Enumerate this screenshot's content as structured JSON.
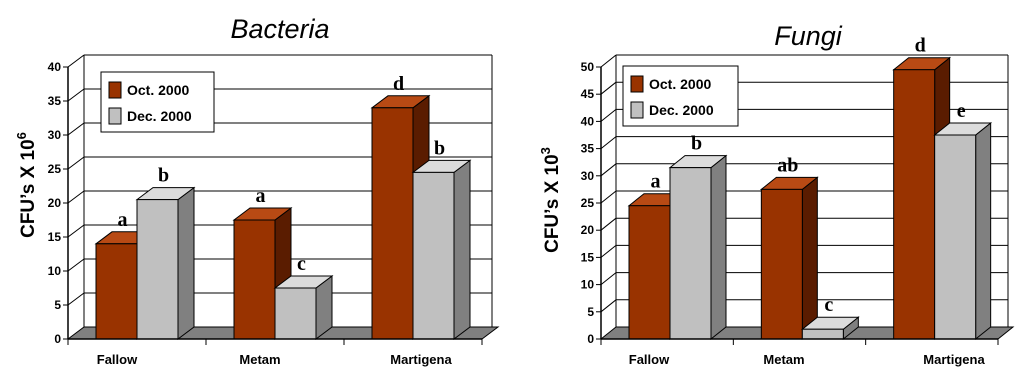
{
  "colors": {
    "oct_front": "#993300",
    "oct_side": "#5a1c00",
    "oct_top": "#b84a14",
    "dec_front": "#c0c0c0",
    "dec_side": "#808080",
    "dec_top": "#dcdcdc",
    "floor": "#808080",
    "axis": "#000000",
    "grid": "#000000"
  },
  "chart_data": [
    {
      "type": "bar",
      "title": "Bacteria",
      "ylabel_prefix": "CFU’s X 10",
      "ylabel_exp": "6",
      "xlabel": "",
      "ylim": [
        0,
        40
      ],
      "yticks": [
        "0",
        "5",
        "10",
        "15",
        "20",
        "25",
        "30",
        "35",
        "40"
      ],
      "categories": [
        "Fallow",
        "Metam",
        "Martigena"
      ],
      "series": [
        {
          "name": "Oct. 2000",
          "values": [
            14,
            17.5,
            34
          ],
          "labels": [
            "a",
            "a",
            "d"
          ]
        },
        {
          "name": "Dec. 2000",
          "values": [
            20.5,
            7.5,
            24.5
          ],
          "labels": [
            "b",
            "c",
            "b"
          ]
        }
      ],
      "grid": true,
      "legend_position": "top-left"
    },
    {
      "type": "bar",
      "title": "Fungi",
      "ylabel_prefix": "CFU’s X 10",
      "ylabel_exp": "3",
      "xlabel": "",
      "ylim": [
        0,
        50
      ],
      "yticks": [
        "0",
        "5",
        "10",
        "15",
        "20",
        "25",
        "30",
        "35",
        "40",
        "45",
        "50"
      ],
      "categories": [
        "Fallow",
        "Metam",
        "Martigena"
      ],
      "series": [
        {
          "name": "Oct. 2000",
          "values": [
            24.5,
            27.5,
            49.5
          ],
          "labels": [
            "a",
            "ab",
            "d"
          ]
        },
        {
          "name": "Dec. 2000",
          "values": [
            31.5,
            1.8,
            37.5
          ],
          "labels": [
            "b",
            "c",
            "e"
          ]
        }
      ],
      "grid": true,
      "legend_position": "top-left"
    }
  ]
}
